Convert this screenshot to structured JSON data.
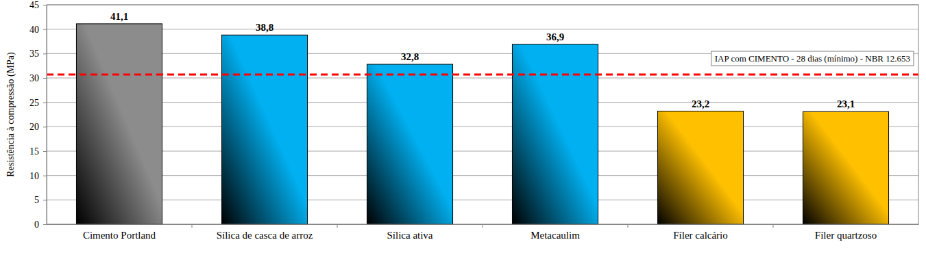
{
  "chart_data": {
    "type": "bar",
    "y_label": "Resistência à compressão (MPa)",
    "categories": [
      "Cimento Portland",
      "Sílica de casca de arroz",
      "Sílica ativa",
      "Metacaulim",
      "Fíler calcário",
      "Fíler quartzoso"
    ],
    "values": [
      41.1,
      38.8,
      32.8,
      36.9,
      23.2,
      23.1
    ],
    "value_labels": [
      "41,1",
      "38,8",
      "32,8",
      "36,9",
      "23,2",
      "23,1"
    ],
    "colors": [
      "#8c8c8c",
      "#00b0f0",
      "#00b0f0",
      "#00b0f0",
      "#ffc000",
      "#ffc000"
    ],
    "ylim": [
      0,
      45
    ],
    "yticks": [
      0,
      5,
      10,
      15,
      20,
      25,
      30,
      35,
      40,
      45
    ],
    "grid": true,
    "data_labels": true,
    "annotations": [
      {
        "label": "IAP com CIMENTO - 28 dias (mínimo) - NBR 12.653",
        "y": 30.7,
        "color": "#ff0000",
        "line_style": "dashed"
      }
    ]
  }
}
